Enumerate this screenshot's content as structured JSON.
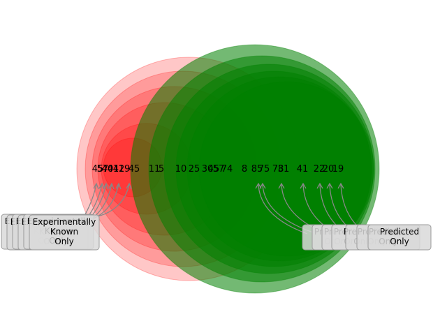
{
  "colors": {
    "left_set": "#ff0000",
    "right_set": "#008000",
    "overlap": "#808000",
    "arrow": "#888888",
    "label_box": "#d9d9d9"
  },
  "left_labels": [
    {
      "lines": [
        "Experimentally",
        "Known",
        "Only"
      ]
    },
    {
      "lines": [
        "Experimentally",
        "Known",
        "Only"
      ]
    },
    {
      "lines": [
        "Experimentally",
        "Known",
        "Only"
      ]
    },
    {
      "lines": [
        "Experimentally",
        "Known",
        "Only"
      ]
    },
    {
      "lines": [
        "Experimentally",
        "Known",
        "Only"
      ]
    },
    {
      "lines": [
        "Experimentally",
        "Known",
        "Only"
      ]
    }
  ],
  "right_labels": [
    {
      "lines": [
        "Predicted",
        "Only"
      ]
    },
    {
      "lines": [
        "Predicted",
        "Only"
      ]
    },
    {
      "lines": [
        "Predicted",
        "Only"
      ]
    },
    {
      "lines": [
        "Predicted",
        "Only"
      ]
    },
    {
      "lines": [
        "Predicted",
        "Only"
      ]
    },
    {
      "lines": [
        "Predicted",
        "Only"
      ]
    },
    {
      "lines": [
        "Predicted",
        "Only"
      ]
    }
  ],
  "region_numbers": [
    "45",
    "57",
    "40",
    "41",
    "42",
    "19",
    "45",
    "11",
    "5",
    "10",
    "25",
    "30",
    "45",
    "57",
    "74",
    "8",
    "85",
    "75",
    "78",
    "31",
    "41",
    "22",
    "20",
    "19"
  ]
}
